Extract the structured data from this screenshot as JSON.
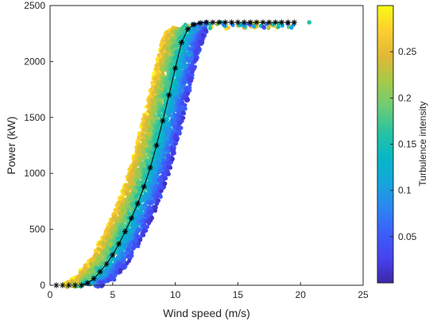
{
  "chart_data": {
    "type": "scatter",
    "xlabel": "Wind speed (m/s)",
    "ylabel": "Power (kW)",
    "xlim": [
      0,
      25
    ],
    "ylim": [
      0,
      2500
    ],
    "x_ticks": [
      0,
      5,
      10,
      15,
      20,
      25
    ],
    "y_ticks": [
      0,
      500,
      1000,
      1500,
      2000,
      2500
    ],
    "grid": false,
    "colorbar": {
      "label": "Turbulence intensity",
      "range": [
        0.0,
        0.3
      ],
      "ticks": [
        0.05,
        0.1,
        0.15,
        0.2,
        0.25
      ],
      "colormap": "parula",
      "colors": [
        "#3e26a8",
        "#4743f0",
        "#3b5ffa",
        "#2b88f1",
        "#14a6da",
        "#06b8c5",
        "#2ac3a1",
        "#6dcc76",
        "#a7c948",
        "#e0b935",
        "#fdce2f",
        "#f9fb15"
      ]
    },
    "power_curve": {
      "marker": "asterisk",
      "color": "#000000",
      "x": [
        0.5,
        1.0,
        1.5,
        2.0,
        2.5,
        3.0,
        3.5,
        4.0,
        4.5,
        5.0,
        5.5,
        6.0,
        6.5,
        7.0,
        7.5,
        8.0,
        8.5,
        9.0,
        9.5,
        10.0,
        10.5,
        11.0,
        11.5,
        12.0,
        12.5,
        13.0,
        13.5,
        14.0,
        14.5,
        15.0,
        15.5,
        16.0,
        16.5,
        17.0,
        17.5,
        18.0,
        18.5,
        19.0,
        19.5
      ],
      "y": [
        0,
        0,
        0,
        0,
        0,
        20,
        60,
        120,
        190,
        270,
        370,
        480,
        600,
        730,
        880,
        1050,
        1250,
        1470,
        1700,
        1940,
        2170,
        2290,
        2330,
        2345,
        2350,
        2350,
        2350,
        2350,
        2350,
        2350,
        2350,
        2350,
        2350,
        2350,
        2350,
        2350,
        2350,
        2350,
        2350
      ]
    },
    "outlier": {
      "x": 20.7,
      "y": 2350,
      "ti": 0.16
    }
  }
}
